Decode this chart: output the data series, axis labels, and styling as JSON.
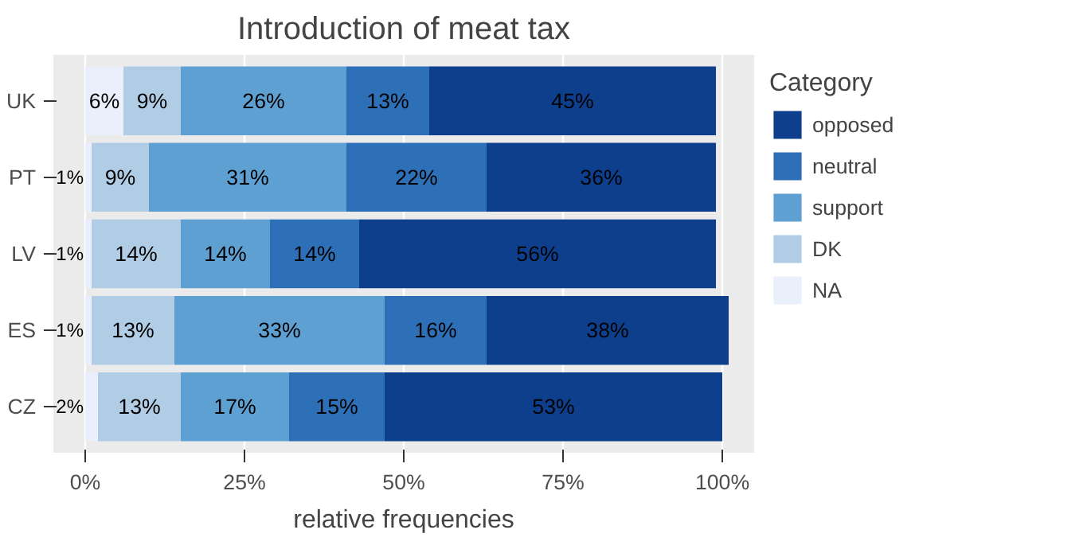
{
  "chart_data": {
    "type": "bar",
    "orientation": "horizontal",
    "stacked": true,
    "title": "Introduction of meat tax",
    "xlabel": "relative frequencies",
    "legend_title": "Category",
    "legend": "right",
    "grid": "x",
    "categories": [
      "UK",
      "PT",
      "LV",
      "ES",
      "CZ"
    ],
    "xlim": [
      -5,
      105
    ],
    "xticks": [
      {
        "value": 0,
        "label": "0%"
      },
      {
        "value": 25,
        "label": "25%"
      },
      {
        "value": 50,
        "label": "50%"
      },
      {
        "value": 75,
        "label": "75%"
      },
      {
        "value": 100,
        "label": "100%"
      }
    ],
    "series": [
      {
        "name": "NA",
        "color": "#eaeffc",
        "values": [
          6,
          1,
          1,
          1,
          2
        ],
        "value_labels": [
          "6%",
          "1%",
          "1%",
          "1%",
          "2%"
        ]
      },
      {
        "name": "DK",
        "color": "#b0cde5",
        "values": [
          9,
          9,
          14,
          13,
          13
        ],
        "value_labels": [
          "9%",
          "9%",
          "14%",
          "13%",
          "13%"
        ]
      },
      {
        "name": "support",
        "color": "#5fa0d3",
        "values": [
          26,
          31,
          14,
          33,
          17
        ],
        "value_labels": [
          "26%",
          "31%",
          "14%",
          "33%",
          "17%"
        ]
      },
      {
        "name": "neutral",
        "color": "#2d70b8",
        "values": [
          13,
          22,
          14,
          16,
          15
        ],
        "value_labels": [
          "13%",
          "22%",
          "14%",
          "16%",
          "15%"
        ]
      },
      {
        "name": "opposed",
        "color": "#0d3f8d",
        "values": [
          45,
          36,
          56,
          38,
          53
        ],
        "value_labels": [
          "45%",
          "36%",
          "56%",
          "38%",
          "53%"
        ]
      }
    ]
  }
}
